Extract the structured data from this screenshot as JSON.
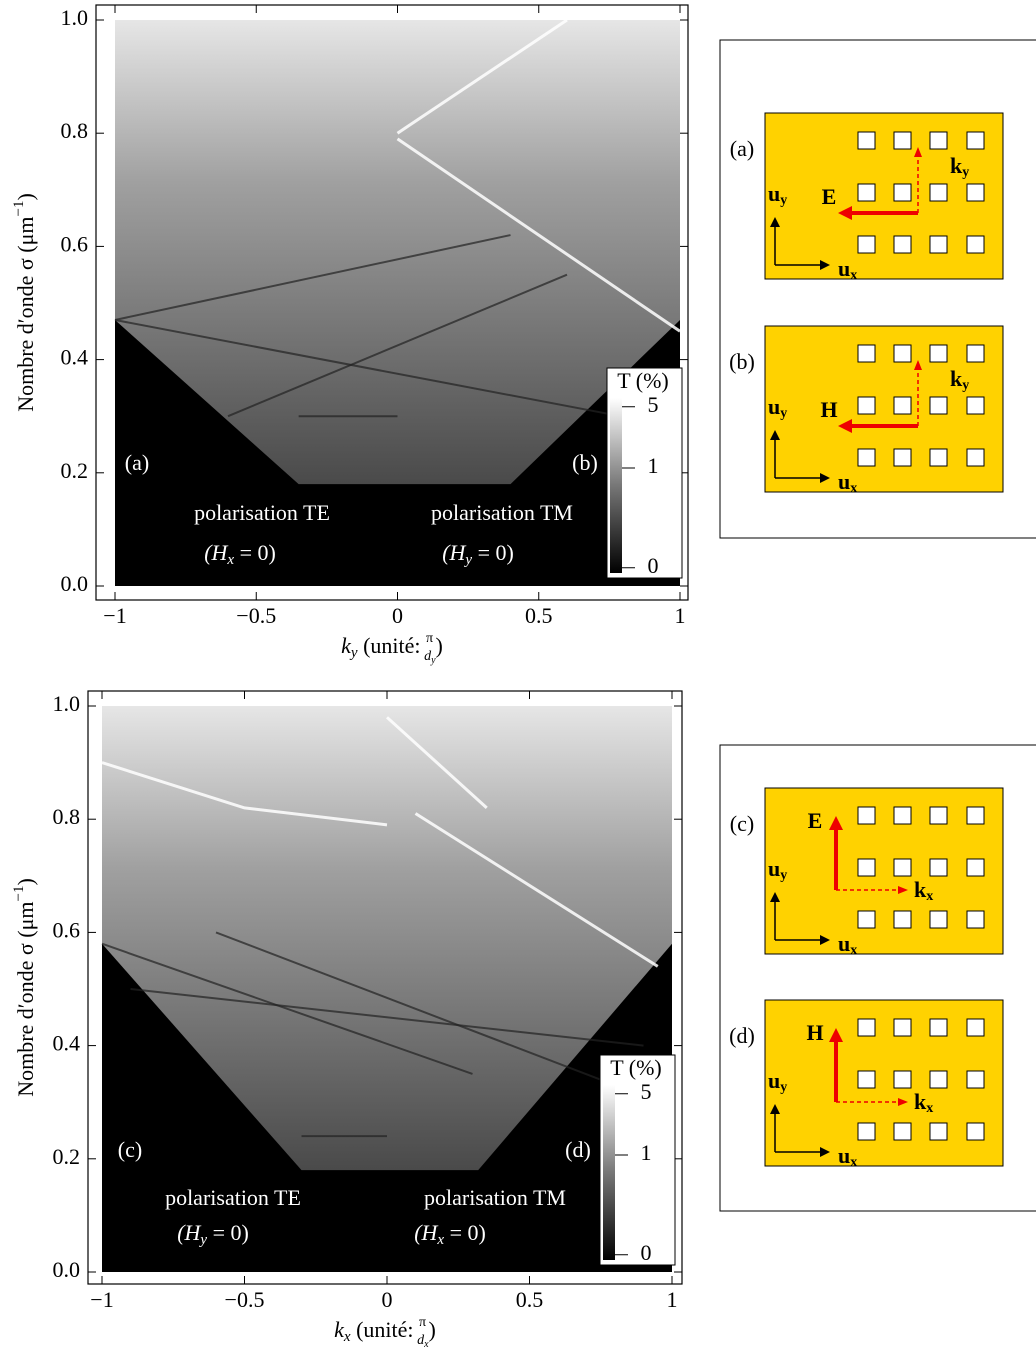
{
  "panels": [
    {
      "xlim": [
        -1,
        1
      ],
      "ylim": [
        0,
        1
      ],
      "xticks": [
        {
          "value": -1,
          "label": "−1"
        },
        {
          "value": -0.5,
          "label": "−0.5"
        },
        0,
        0.5,
        1
      ],
      "yticks": [
        {
          "value": 0,
          "label": "0.0"
        },
        {
          "value": 0.2,
          "label": "0.2"
        },
        {
          "value": 0.4,
          "label": "0.4"
        },
        {
          "value": 0.6,
          "label": "0.6"
        },
        {
          "value": 0.8,
          "label": "0.8"
        },
        {
          "value": 1,
          "label": "1.0"
        }
      ],
      "ylabel": {
        "text": "Nombre d′onde σ (μm",
        "sup": "−1",
        "close": ")"
      },
      "xlabel": {
        "var": "k",
        "var_sub": "y",
        "text": " (unité: ",
        "num": "π",
        "den": "d",
        "den_sub": "y",
        "close": ")"
      },
      "left": {
        "tag": "(a)",
        "polarisation": "polarisation TE",
        "open": "(H",
        "sub": "x",
        "rest": " = 0)"
      },
      "right": {
        "tag": "(b)",
        "polarisation": "polarisation TM",
        "open": "(H",
        "sub": "y",
        "rest": " = 0)"
      },
      "colorbar": {
        "title": "T (%)",
        "ticks": [
          5,
          1,
          0
        ]
      },
      "diagrams": [
        {
          "tag": "(a)",
          "field": "E",
          "k": "k",
          "k_sub": "y",
          "uy": "u",
          "uy_sub": "y",
          "ux": "u",
          "ux_sub": "x"
        },
        {
          "tag": "(b)",
          "field": "H",
          "k": "k",
          "k_sub": "y",
          "uy": "u",
          "uy_sub": "y",
          "ux": "u",
          "ux_sub": "x"
        }
      ]
    },
    {
      "xlim": [
        -1,
        1
      ],
      "ylim": [
        0,
        1
      ],
      "xticks": [
        {
          "value": -1,
          "label": "−1"
        },
        {
          "value": -0.5,
          "label": "−0.5"
        },
        0,
        0.5,
        1
      ],
      "yticks": [
        {
          "value": 0,
          "label": "0.0"
        },
        {
          "value": 0.2,
          "label": "0.2"
        },
        {
          "value": 0.4,
          "label": "0.4"
        },
        {
          "value": 0.6,
          "label": "0.6"
        },
        {
          "value": 0.8,
          "label": "0.8"
        },
        {
          "value": 1,
          "label": "1.0"
        }
      ],
      "ylabel": {
        "text": "Nombre d′onde σ (μm",
        "sup": "−1",
        "close": ")"
      },
      "xlabel": {
        "var": "k",
        "var_sub": "x",
        "text": " (unité: ",
        "num": "π",
        "den": "d",
        "den_sub": "x",
        "close": ")"
      },
      "left": {
        "tag": "(c)",
        "polarisation": "polarisation TE",
        "open": "(H",
        "sub": "y",
        "rest": " = 0)"
      },
      "right": {
        "tag": "(d)",
        "polarisation": "polarisation TM",
        "open": "(H",
        "sub": "x",
        "rest": " = 0)"
      },
      "colorbar": {
        "title": "T (%)",
        "ticks": [
          5,
          1,
          0
        ]
      },
      "diagrams": [
        {
          "tag": "(c)",
          "field": "E",
          "k": "k",
          "k_sub": "x",
          "uy": "u",
          "uy_sub": "y",
          "ux": "u",
          "ux_sub": "x"
        },
        {
          "tag": "(d)",
          "field": "H",
          "k": "k",
          "k_sub": "x",
          "uy": "u",
          "uy_sub": "y",
          "ux": "u",
          "ux_sub": "x"
        }
      ]
    }
  ]
}
